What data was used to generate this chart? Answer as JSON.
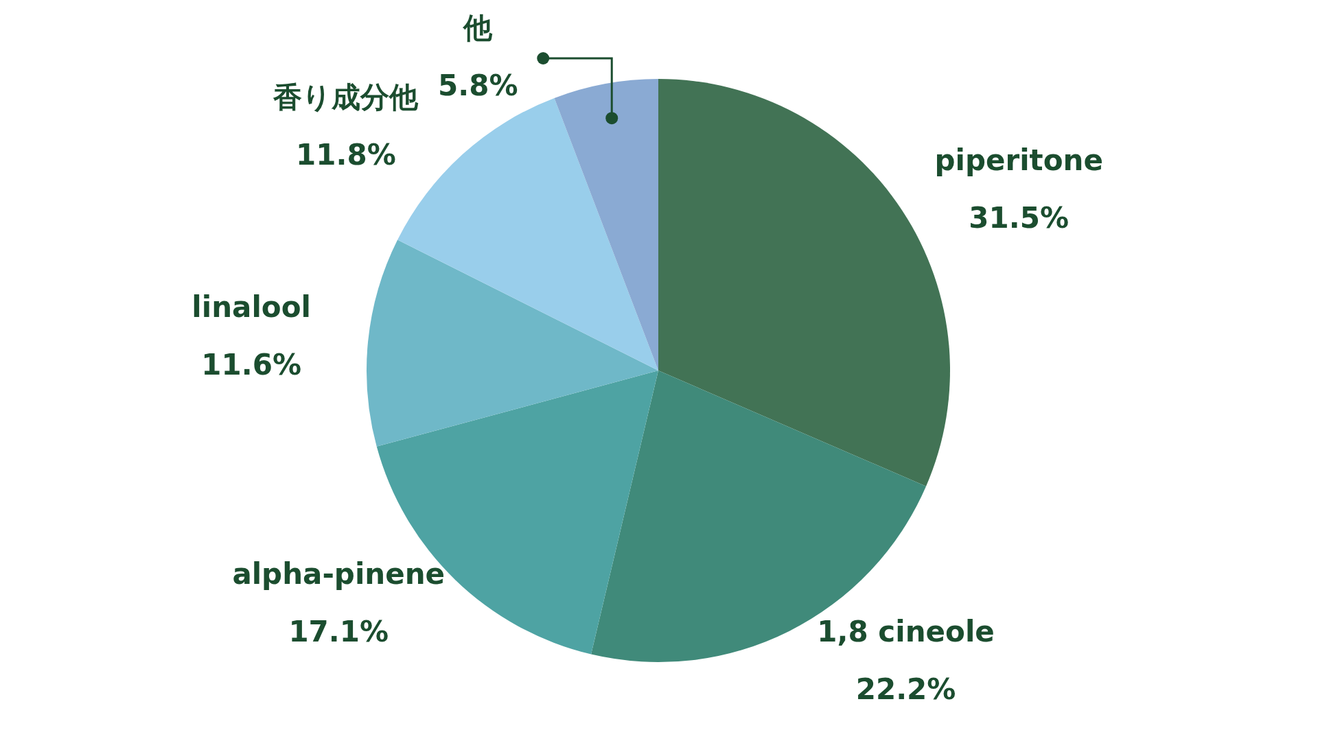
{
  "chart_data": {
    "type": "pie",
    "categories": [
      "piperitone",
      "1,8 cineole",
      "alpha-pinene",
      "linalool",
      "香り成分他",
      "他"
    ],
    "values": [
      31.5,
      22.2,
      17.1,
      11.6,
      11.8,
      5.8
    ],
    "value_labels": [
      "31.5%",
      "22.2%",
      "17.1%",
      "11.6%",
      "11.8%",
      "5.8%"
    ],
    "colors": [
      "#427355",
      "#408a7a",
      "#4ea3a3",
      "#6fb8c8",
      "#99ceeb",
      "#8aaad3"
    ],
    "legend": false
  }
}
